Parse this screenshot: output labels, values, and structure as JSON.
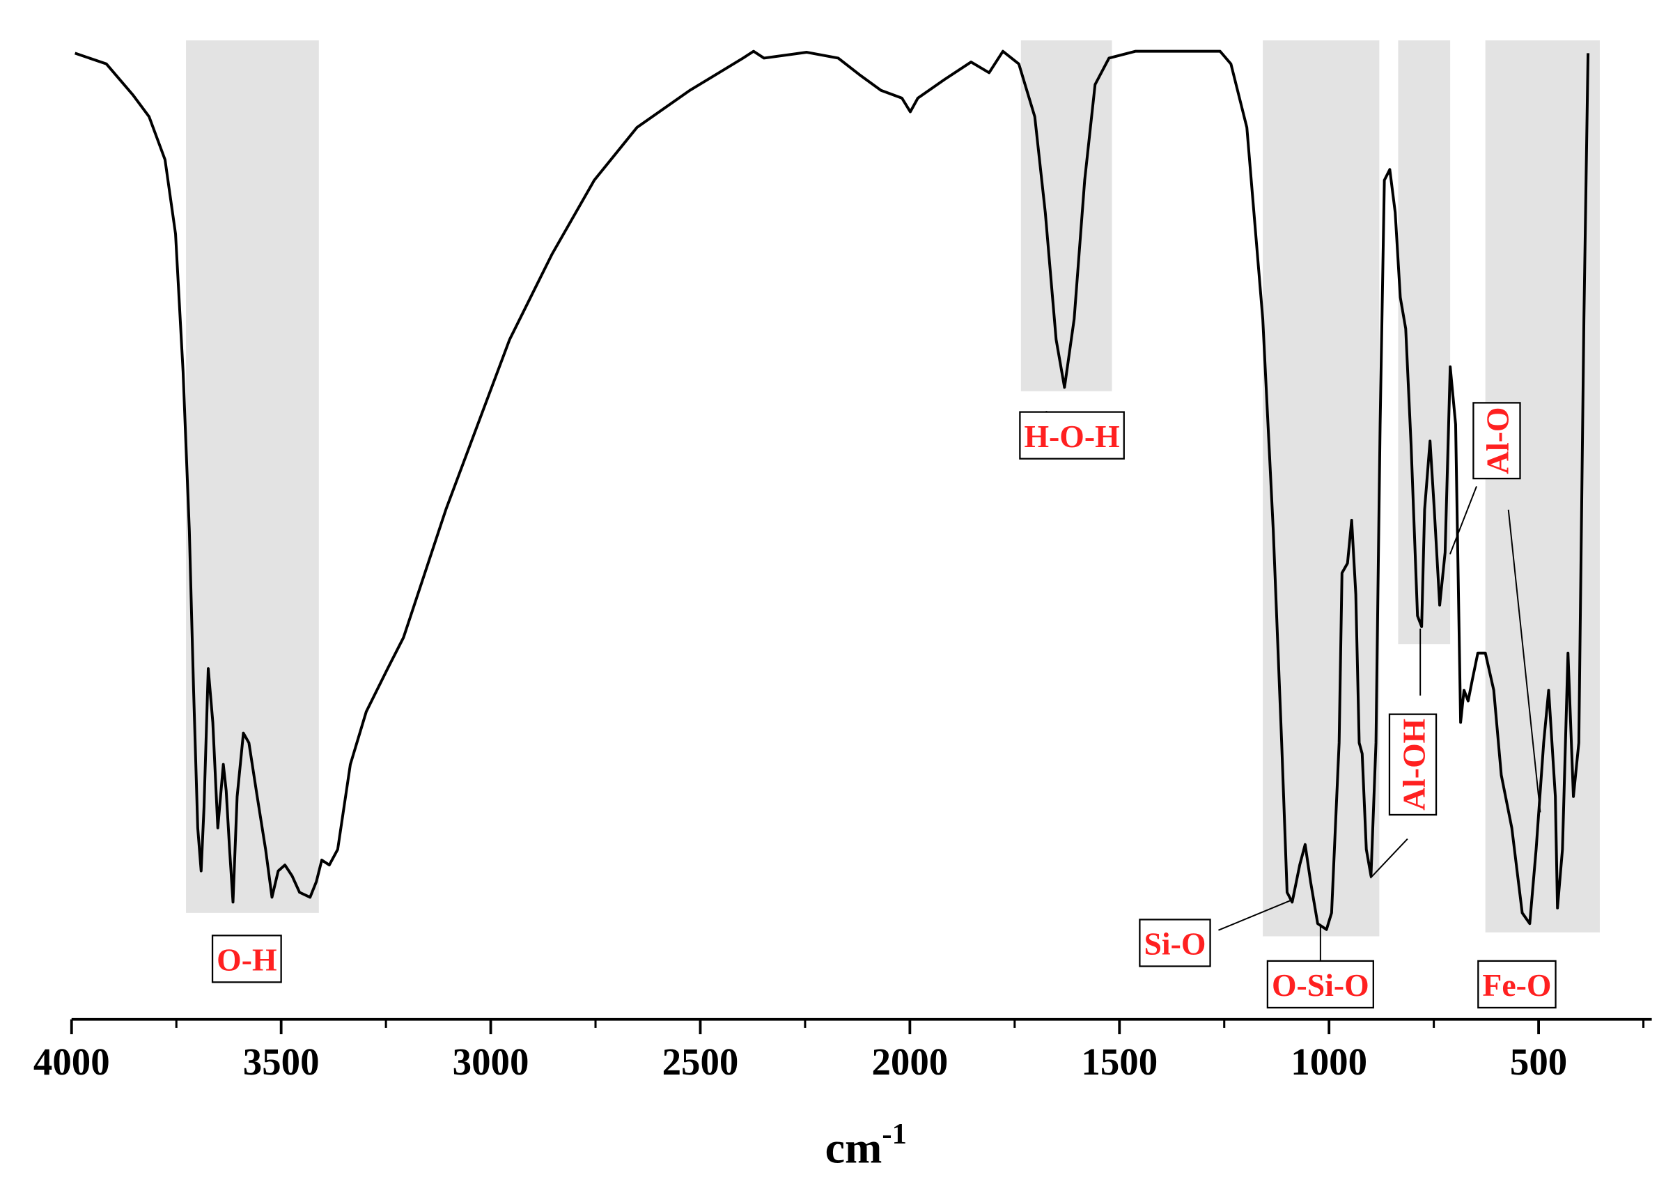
{
  "chart_data": {
    "type": "line",
    "x_label": "cm",
    "x_label_superscript": "-1",
    "xlim": [
      4000,
      230
    ],
    "ylim": [
      0,
      100
    ],
    "xticks": [
      4000,
      3500,
      3000,
      2500,
      2000,
      1500,
      1000,
      500
    ],
    "xminor_ticks": [
      3750,
      3250,
      2750,
      2250,
      1750,
      1250,
      750,
      250
    ],
    "color": "#000000",
    "band_color": "#e3e3e3",
    "bands": [
      [
        3727,
        3410,
        10.9
      ],
      [
        1735,
        1518,
        64.3
      ],
      [
        1158,
        880,
        8.5
      ],
      [
        835,
        711,
        38.4
      ],
      [
        627,
        354,
        8.9
      ]
    ],
    "annotations": [
      "O-H",
      "H-O-H",
      "Si-O",
      "O-Si-O",
      "Al-OH",
      "Al-O",
      "Fe-O"
    ],
    "x": [
      3992,
      3917,
      3853,
      3815,
      3777,
      3752,
      3734,
      3719,
      3709,
      3699,
      3691,
      3684,
      3674,
      3663,
      3651,
      3638,
      3631,
      3623,
      3615,
      3605,
      3590,
      3577,
      3557,
      3537,
      3522,
      3507,
      3491,
      3474,
      3456,
      3431,
      3416,
      3403,
      3385,
      3365,
      3335,
      3297,
      3246,
      3208,
      3157,
      3107,
      3031,
      2955,
      2854,
      2753,
      2651,
      2525,
      2398,
      2373,
      2348,
      2246,
      2171,
      2120,
      2069,
      2019,
      1999,
      1981,
      1918,
      1854,
      1811,
      1778,
      1740,
      1702,
      1677,
      1651,
      1631,
      1608,
      1583,
      1558,
      1525,
      1462,
      1386,
      1260,
      1234,
      1196,
      1158,
      1133,
      1113,
      1100,
      1088,
      1070,
      1057,
      1044,
      1027,
      1006,
      994,
      976,
      969,
      956,
      946,
      936,
      928,
      921,
      911,
      900,
      888,
      878,
      868,
      855,
      842,
      830,
      817,
      804,
      789,
      779,
      772,
      759,
      749,
      736,
      723,
      711,
      698,
      686,
      678,
      668,
      658,
      645,
      627,
      607,
      589,
      564,
      539,
      521,
      506,
      488,
      476,
      460,
      455,
      443,
      430,
      417,
      404,
      392,
      382
    ],
    "values": [
      98.9,
      97.8,
      94.6,
      92.4,
      88.0,
      80.4,
      66.3,
      50.0,
      33.7,
      19.6,
      15.2,
      21.7,
      35.9,
      30.4,
      19.6,
      26.1,
      23.4,
      17.4,
      12.0,
      22.8,
      29.3,
      28.3,
      22.8,
      17.4,
      12.5,
      15.2,
      15.8,
      14.7,
      13.0,
      12.5,
      14.1,
      16.3,
      15.8,
      17.4,
      26.1,
      31.5,
      35.9,
      39.1,
      45.7,
      52.2,
      60.9,
      69.6,
      78.3,
      85.9,
      91.3,
      95.1,
      98.4,
      99.1,
      98.4,
      99.0,
      98.4,
      96.7,
      95.1,
      94.3,
      92.9,
      94.3,
      96.2,
      98.0,
      96.9,
      99.1,
      97.8,
      92.4,
      82.6,
      69.6,
      64.7,
      71.7,
      85.9,
      95.7,
      98.4,
      99.1,
      99.1,
      99.1,
      97.8,
      91.3,
      71.7,
      50.0,
      28.3,
      13.0,
      12.0,
      15.8,
      17.9,
      14.1,
      9.8,
      9.2,
      10.9,
      28.3,
      45.7,
      46.7,
      51.1,
      43.5,
      28.3,
      27.2,
      17.4,
      14.7,
      28.3,
      60.9,
      85.9,
      87.0,
      82.6,
      73.9,
      70.7,
      58.7,
      41.3,
      40.2,
      52.2,
      59.2,
      52.2,
      42.4,
      47.8,
      66.8,
      60.9,
      30.4,
      33.7,
      32.6,
      34.8,
      37.5,
      37.5,
      33.7,
      25.0,
      19.6,
      10.9,
      9.8,
      17.4,
      28.3,
      33.7,
      22.8,
      11.4,
      17.4,
      37.5,
      22.8,
      28.3,
      71.7,
      98.9
    ]
  }
}
